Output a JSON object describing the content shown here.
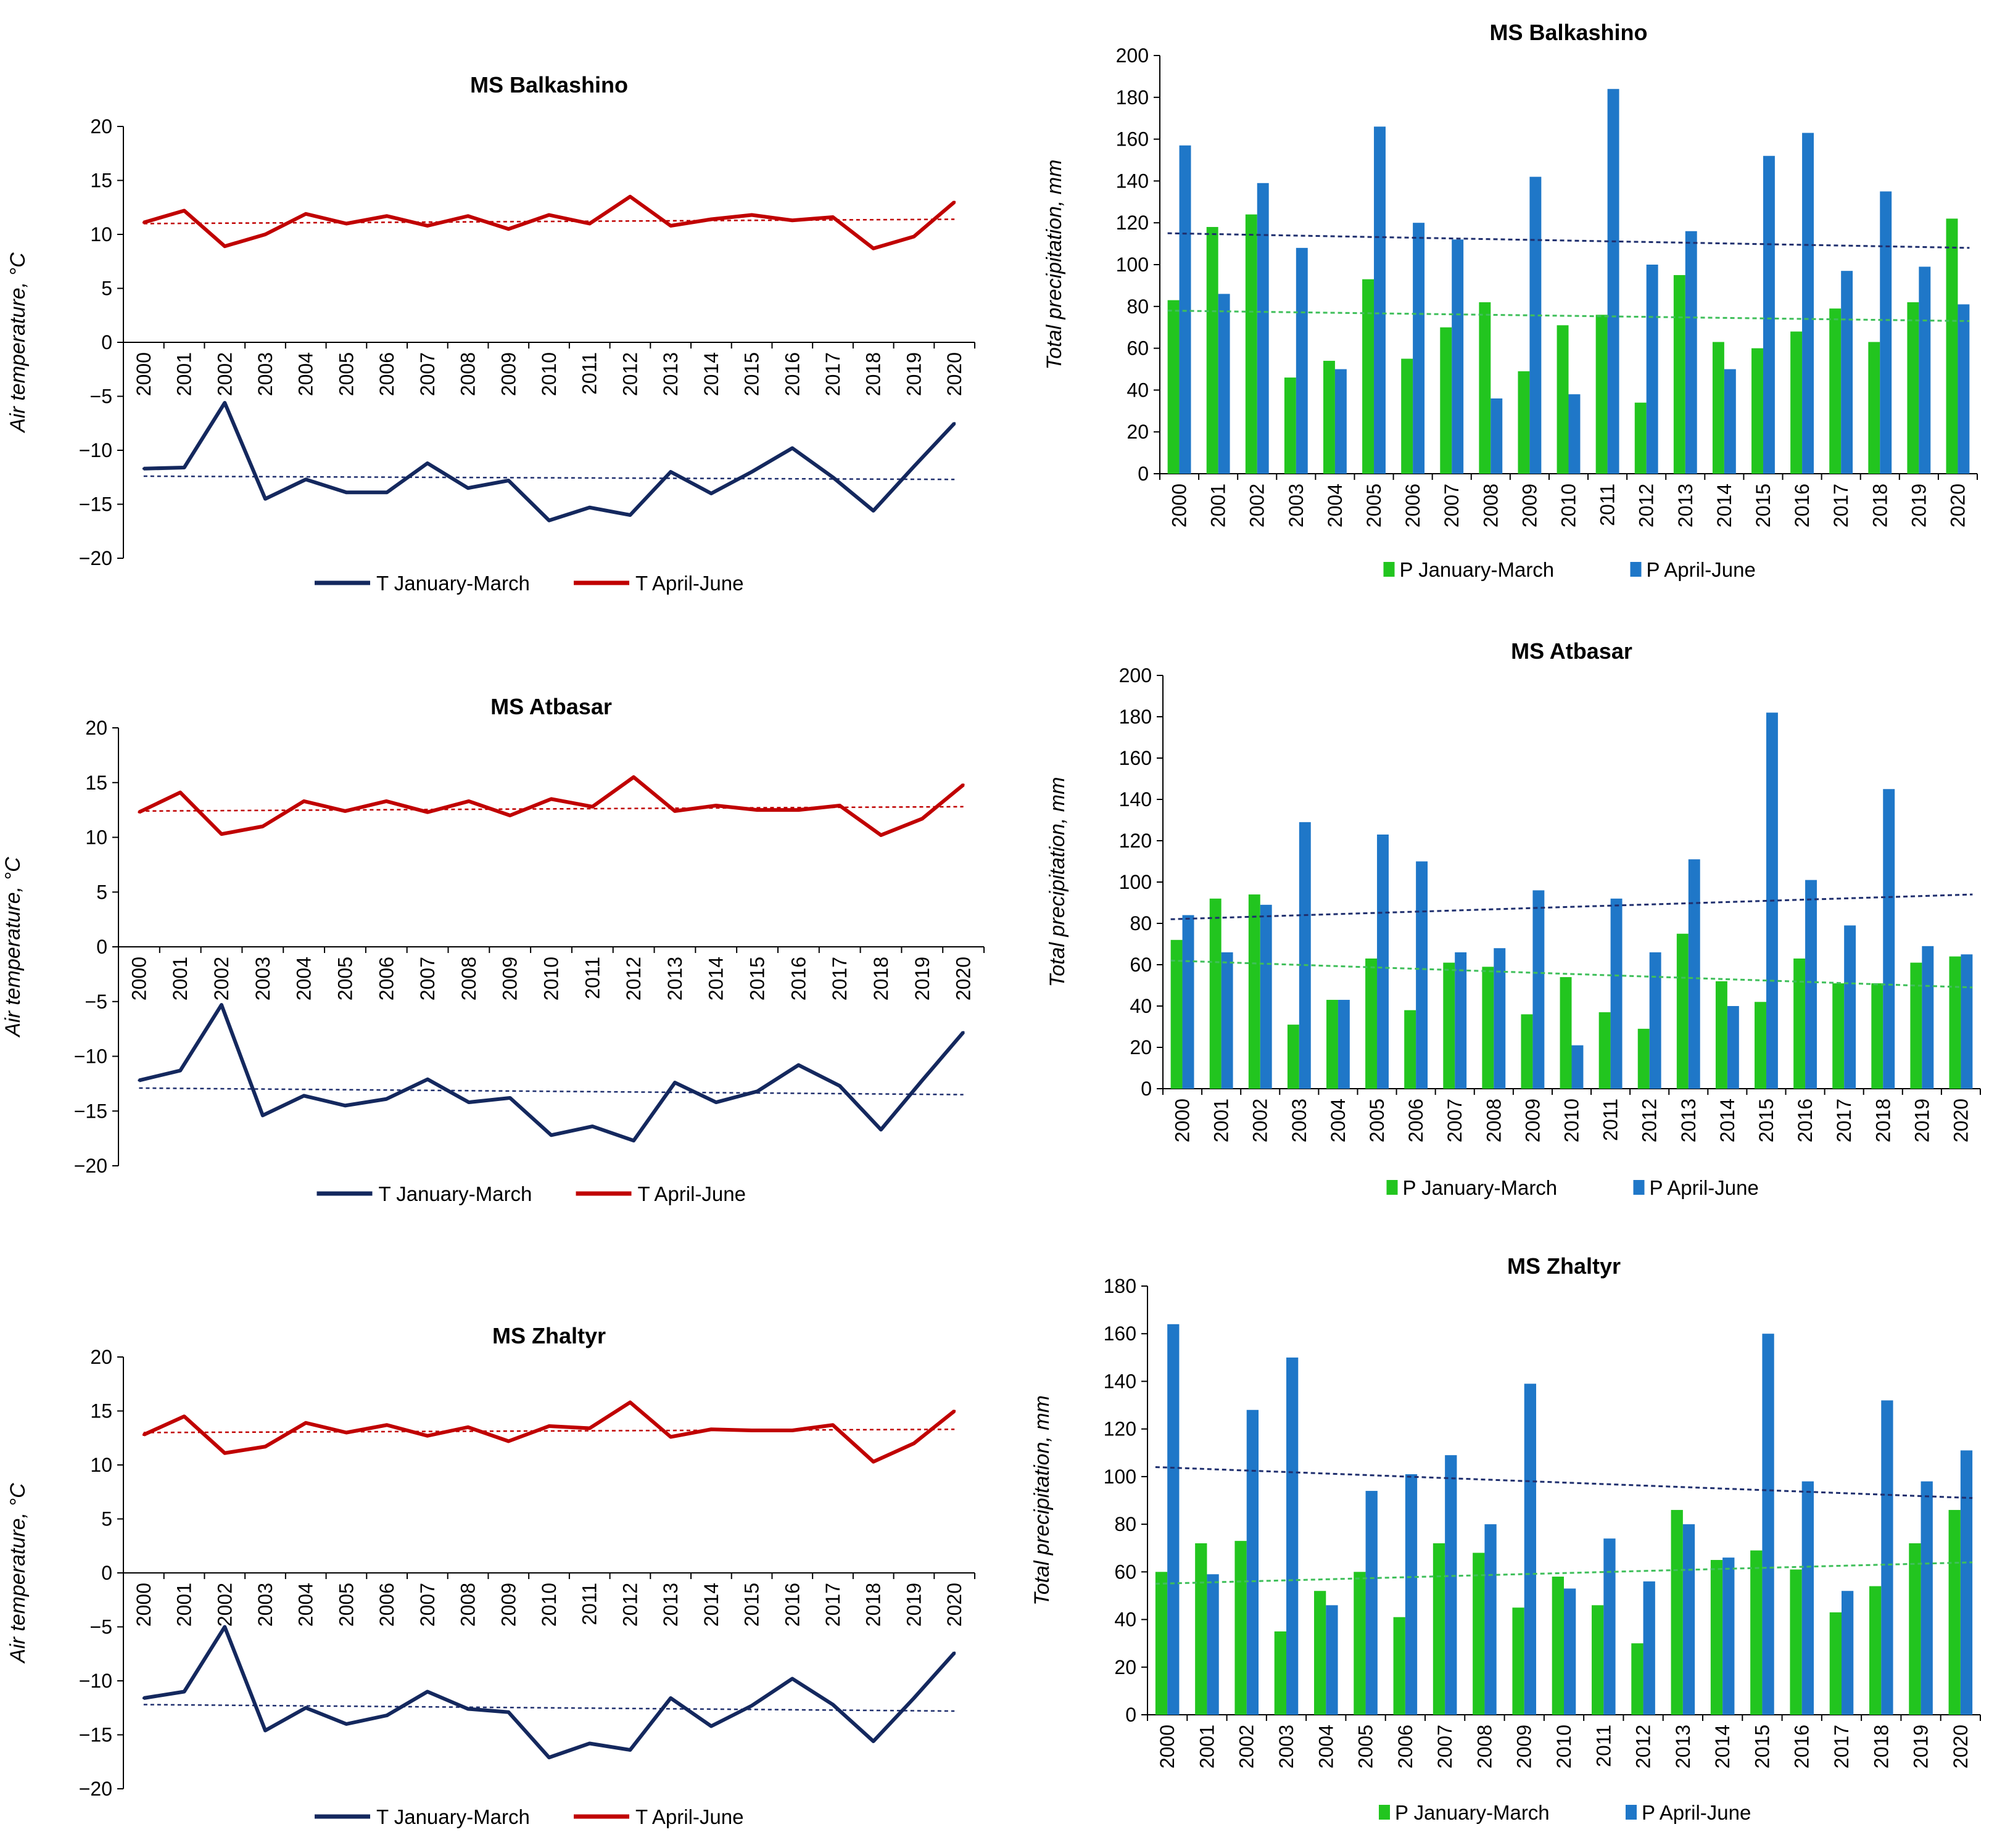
{
  "colors": {
    "t_jan_mar": "#14285e",
    "t_apr_jun": "#c00000",
    "p_jan_mar": "#22c51f",
    "p_apr_jun": "#1f77c8",
    "trend_green": "#3fbf5a",
    "trend_blue": "#1f2f6e",
    "axis": "#000000"
  },
  "chart_data": [
    {
      "id": "temp-balkashino",
      "type": "line",
      "title": "MS Balkashino",
      "ylabel": "Air temperature, °C",
      "ylim": [
        -20,
        20
      ],
      "yticks": [
        -20,
        -15,
        -10,
        -5,
        0,
        5,
        10,
        15,
        20
      ],
      "categories": [
        "2000",
        "2001",
        "2002",
        "2003",
        "2004",
        "2005",
        "2006",
        "2007",
        "2008",
        "2009",
        "2010",
        "2011",
        "2012",
        "2013",
        "2014",
        "2015",
        "2016",
        "2017",
        "2018",
        "2019",
        "2020"
      ],
      "series": [
        {
          "name": "T January-March",
          "values": [
            -11.7,
            -11.6,
            -5.6,
            -14.5,
            -12.7,
            -13.9,
            -13.9,
            -11.2,
            -13.5,
            -12.8,
            -16.5,
            -15.3,
            -16,
            -12,
            -14,
            -12,
            -9.8,
            -12.5,
            -15.6,
            -11.5,
            -7.5
          ],
          "trend": [
            -12.4,
            -12.7
          ]
        },
        {
          "name": "T April-June",
          "values": [
            11.1,
            12.2,
            8.9,
            10,
            11.9,
            11,
            11.7,
            10.8,
            11.7,
            10.5,
            11.8,
            11,
            13.5,
            10.8,
            11.4,
            11.8,
            11.3,
            11.6,
            8.7,
            9.8,
            13
          ]
        }
      ],
      "trends": [
        [
          11.0,
          11.4
        ],
        [
          -12.4,
          -12.7
        ]
      ],
      "legend": [
        "T January-March",
        "T April-June"
      ]
    },
    {
      "id": "temp-atbasar",
      "type": "line",
      "title": "MS Atbasar",
      "ylabel": "Air temperature, °C",
      "ylim": [
        -20,
        20
      ],
      "yticks": [
        -20,
        -15,
        -10,
        -5,
        0,
        5,
        10,
        15,
        20
      ],
      "categories": [
        "2000",
        "2001",
        "2002",
        "2003",
        "2004",
        "2005",
        "2006",
        "2007",
        "2008",
        "2009",
        "2010",
        "2011",
        "2012",
        "2013",
        "2014",
        "2015",
        "2016",
        "2017",
        "2018",
        "2019",
        "2020"
      ],
      "series": [
        {
          "name": "T January-March",
          "values": [
            -12.2,
            -11.3,
            -5.3,
            -15.4,
            -13.6,
            -14.5,
            -13.9,
            -12.1,
            -14.2,
            -13.8,
            -17.2,
            -16.4,
            -17.7,
            -12.4,
            -14.2,
            -13.2,
            -10.8,
            -12.7,
            -16.7,
            -12.2,
            -7.8
          ]
        },
        {
          "name": "T April-June",
          "values": [
            12.3,
            14.1,
            10.3,
            11,
            13.3,
            12.4,
            13.3,
            12.3,
            13.3,
            12,
            13.5,
            12.8,
            15.5,
            12.4,
            12.9,
            12.5,
            12.5,
            12.9,
            10.2,
            11.7,
            14.8
          ]
        }
      ],
      "trends": [
        [
          12.4,
          12.8
        ],
        [
          -12.9,
          -13.5
        ]
      ],
      "legend": [
        "T January-March",
        "T April-June"
      ]
    },
    {
      "id": "temp-zhaltyr",
      "type": "line",
      "title": "MS Zhaltyr",
      "ylabel": "Air temperature, °C",
      "ylim": [
        -20,
        20
      ],
      "yticks": [
        -20,
        -15,
        -10,
        -5,
        0,
        5,
        10,
        15,
        20
      ],
      "categories": [
        "2000",
        "2001",
        "2002",
        "2003",
        "2004",
        "2005",
        "2006",
        "2007",
        "2008",
        "2009",
        "2010",
        "2011",
        "2012",
        "2013",
        "2014",
        "2015",
        "2016",
        "2017",
        "2018",
        "2019",
        "2020"
      ],
      "series": [
        {
          "name": "T January-March",
          "values": [
            -11.6,
            -11,
            -5,
            -14.6,
            -12.5,
            -14,
            -13.2,
            -11,
            -12.6,
            -12.9,
            -17.1,
            -15.8,
            -16.4,
            -11.6,
            -14.2,
            -12.3,
            -9.8,
            -12.2,
            -15.6,
            -11.6,
            -7.4
          ]
        },
        {
          "name": "T April-June",
          "values": [
            12.8,
            14.5,
            11.1,
            11.7,
            13.9,
            13,
            13.7,
            12.7,
            13.5,
            12.2,
            13.6,
            13.4,
            15.8,
            12.6,
            13.3,
            13.2,
            13.2,
            13.7,
            10.3,
            12,
            15
          ]
        }
      ],
      "trends": [
        [
          13.0,
          13.3
        ],
        [
          -12.2,
          -12.8
        ]
      ],
      "legend": [
        "T January-March",
        "T April-June"
      ]
    },
    {
      "id": "precip-balkashino",
      "type": "bar",
      "title": "MS Balkashino",
      "ylabel": "Total precipitation, mm",
      "ylim": [
        0,
        200
      ],
      "yticks": [
        0,
        20,
        40,
        60,
        80,
        100,
        120,
        140,
        160,
        180,
        200
      ],
      "categories": [
        "2000",
        "2001",
        "2002",
        "2003",
        "2004",
        "2005",
        "2006",
        "2007",
        "2008",
        "2009",
        "2010",
        "2011",
        "2012",
        "2013",
        "2014",
        "2015",
        "2016",
        "2017",
        "2018",
        "2019",
        "2020"
      ],
      "series": [
        {
          "name": "P January-March",
          "values": [
            83,
            118,
            124,
            46,
            54,
            93,
            55,
            70,
            82,
            49,
            71,
            76,
            34,
            95,
            63,
            60,
            68,
            79,
            63,
            82,
            122
          ]
        },
        {
          "name": "P April-June",
          "values": [
            157,
            86,
            139,
            108,
            50,
            166,
            120,
            112,
            36,
            142,
            38,
            184,
            100,
            116,
            50,
            152,
            163,
            97,
            135,
            99,
            81
          ]
        }
      ],
      "trends": [
        [
          78,
          73
        ],
        [
          115,
          108
        ]
      ],
      "legend": [
        "P January-March",
        "P April-June"
      ]
    },
    {
      "id": "precip-atbasar",
      "type": "bar",
      "title": "MS Atbasar",
      "ylabel": "Total precipitation, mm",
      "ylim": [
        0,
        200
      ],
      "yticks": [
        0,
        20,
        40,
        60,
        80,
        100,
        120,
        140,
        160,
        180,
        200
      ],
      "categories": [
        "2000",
        "2001",
        "2002",
        "2003",
        "2004",
        "2005",
        "2006",
        "2007",
        "2008",
        "2009",
        "2010",
        "2011",
        "2012",
        "2013",
        "2014",
        "2015",
        "2016",
        "2017",
        "2018",
        "2019",
        "2020"
      ],
      "series": [
        {
          "name": "P January-March",
          "values": [
            72,
            92,
            94,
            31,
            43,
            63,
            38,
            61,
            59,
            36,
            54,
            37,
            29,
            75,
            52,
            42,
            63,
            51,
            51,
            61,
            64
          ]
        },
        {
          "name": "P April-June",
          "values": [
            84,
            66,
            89,
            129,
            43,
            123,
            110,
            66,
            68,
            96,
            21,
            92,
            66,
            111,
            40,
            182,
            101,
            79,
            145,
            69,
            65
          ]
        }
      ],
      "trends": [
        [
          62,
          49
        ],
        [
          82,
          94
        ]
      ],
      "legend": [
        "P January-March",
        "P April-June"
      ]
    },
    {
      "id": "precip-zhaltyr",
      "type": "bar",
      "title": "MS Zhaltyr",
      "ylabel": "Total precipitation, mm",
      "ylim": [
        0,
        180
      ],
      "yticks": [
        0,
        20,
        40,
        60,
        80,
        100,
        120,
        140,
        160,
        180
      ],
      "categories": [
        "2000",
        "2001",
        "2002",
        "2003",
        "2004",
        "2005",
        "2006",
        "2007",
        "2008",
        "2009",
        "2010",
        "2011",
        "2012",
        "2013",
        "2014",
        "2015",
        "2016",
        "2017",
        "2018",
        "2019",
        "2020"
      ],
      "series": [
        {
          "name": "P January-March",
          "values": [
            60,
            72,
            73,
            35,
            52,
            60,
            41,
            72,
            68,
            45,
            58,
            46,
            30,
            86,
            65,
            69,
            61,
            43,
            54,
            72,
            86
          ]
        },
        {
          "name": "P April-June",
          "values": [
            164,
            59,
            128,
            150,
            46,
            94,
            101,
            109,
            80,
            139,
            53,
            74,
            56,
            80,
            66,
            160,
            98,
            52,
            132,
            98,
            111
          ]
        }
      ],
      "trends": [
        [
          55,
          64
        ],
        [
          104,
          91
        ]
      ],
      "legend": [
        "P January-March",
        "P April-June"
      ]
    }
  ]
}
